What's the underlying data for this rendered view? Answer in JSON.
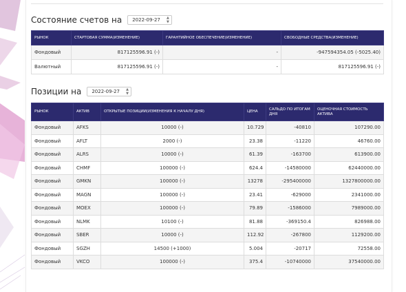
{
  "accounts": {
    "title": "Состояние счетов на",
    "date": "2022-09-27",
    "headers": [
      "Рынок",
      "Стартовая сумма(изменение)",
      "Гарантийное обеспечение(изменение)",
      "Свободные средства(изменение)"
    ],
    "rows": [
      {
        "market": "Фондовый",
        "start": "817125596.91 (-)",
        "guarantee": "-",
        "free": "-947594354.05 (-5025.40)"
      },
      {
        "market": "Валютный",
        "start": "817125596.91 (-)",
        "guarantee": "-",
        "free": "817125596.91 (-)"
      }
    ]
  },
  "positions": {
    "title": "Позиции на",
    "date": "2022-09-27",
    "headers": [
      "Рынок",
      "Актив",
      "Открытые позиции(изменения к началу дня)",
      "Цена",
      "Сальдо по итогам дня",
      "Оценочная стоимость актива"
    ],
    "rows": [
      {
        "market": "Фондовый",
        "asset": "AFKS",
        "open": "10000 (-)",
        "price": "10.729",
        "saldo": "-40810",
        "value": "107290.00"
      },
      {
        "market": "Фондовый",
        "asset": "AFLT",
        "open": "2000 (-)",
        "price": "23.38",
        "saldo": "-11220",
        "value": "46760.00"
      },
      {
        "market": "Фондовый",
        "asset": "ALRS",
        "open": "10000 (-)",
        "price": "61.39",
        "saldo": "-163700",
        "value": "613900.00"
      },
      {
        "market": "Фондовый",
        "asset": "CHMF",
        "open": "100000 (-)",
        "price": "624.4",
        "saldo": "-14580000",
        "value": "62440000.00"
      },
      {
        "market": "Фондовый",
        "asset": "GMKN",
        "open": "100000 (-)",
        "price": "13278",
        "saldo": "-295400000",
        "value": "1327800000.00"
      },
      {
        "market": "Фондовый",
        "asset": "MAGN",
        "open": "100000 (-)",
        "price": "23.41",
        "saldo": "-629000",
        "value": "2341000.00"
      },
      {
        "market": "Фондовый",
        "asset": "MOEX",
        "open": "100000 (-)",
        "price": "79.89",
        "saldo": "-1586000",
        "value": "7989000.00"
      },
      {
        "market": "Фондовый",
        "asset": "NLMK",
        "open": "10100 (-)",
        "price": "81.88",
        "saldo": "-369150.4",
        "value": "826988.00"
      },
      {
        "market": "Фондовый",
        "asset": "SBER",
        "open": "10000 (-)",
        "price": "112.92",
        "saldo": "-267800",
        "value": "1129200.00"
      },
      {
        "market": "Фондовый",
        "asset": "SGZH",
        "open": "14500 (+1000)",
        "price": "5.004",
        "saldo": "-20717",
        "value": "72558.00"
      },
      {
        "market": "Фондовый",
        "asset": "VKCO",
        "open": "100000 (-)",
        "price": "375.4",
        "saldo": "-10740000",
        "value": "37540000.00"
      }
    ]
  }
}
